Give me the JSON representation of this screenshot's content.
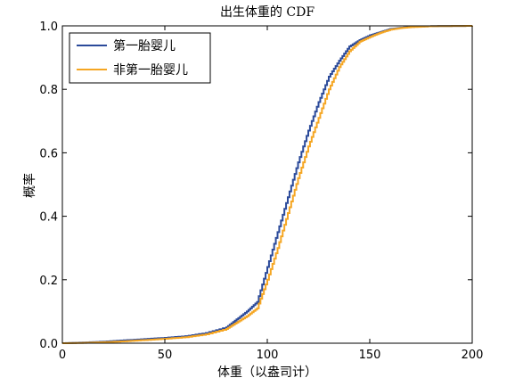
{
  "chart_data": {
    "type": "line",
    "title": "出生体重的 CDF",
    "xlabel": "体重（以盎司计）",
    "ylabel": "概率",
    "xlim": [
      0,
      200
    ],
    "ylim": [
      0.0,
      1.0
    ],
    "xticks": [
      "0",
      "50",
      "100",
      "150",
      "200"
    ],
    "yticks": [
      "0.0",
      "0.2",
      "0.4",
      "0.6",
      "0.8",
      "1.0"
    ],
    "grid": false,
    "legend_position": "top-left",
    "series": [
      {
        "name": "第一胎婴儿",
        "color": "#2b4a9a",
        "x": [
          0,
          10,
          20,
          30,
          40,
          50,
          60,
          70,
          80,
          85,
          90,
          95,
          100,
          105,
          110,
          115,
          120,
          125,
          130,
          135,
          140,
          145,
          150,
          155,
          160,
          165,
          170,
          180,
          200
        ],
        "y": [
          0.0,
          0.002,
          0.005,
          0.009,
          0.013,
          0.017,
          0.022,
          0.032,
          0.05,
          0.075,
          0.1,
          0.13,
          0.24,
          0.35,
          0.46,
          0.57,
          0.67,
          0.76,
          0.84,
          0.89,
          0.935,
          0.955,
          0.97,
          0.98,
          0.99,
          0.994,
          0.997,
          0.999,
          1.0
        ]
      },
      {
        "name": "非第一胎婴儿",
        "color": "#f5a623",
        "x": [
          0,
          10,
          20,
          30,
          40,
          50,
          60,
          70,
          80,
          85,
          90,
          95,
          100,
          105,
          110,
          115,
          120,
          125,
          130,
          135,
          140,
          145,
          150,
          155,
          160,
          165,
          170,
          180,
          200
        ],
        "y": [
          0.0,
          0.001,
          0.003,
          0.006,
          0.01,
          0.014,
          0.019,
          0.028,
          0.045,
          0.065,
          0.085,
          0.11,
          0.2,
          0.3,
          0.41,
          0.52,
          0.62,
          0.71,
          0.8,
          0.87,
          0.92,
          0.95,
          0.965,
          0.978,
          0.988,
          0.993,
          0.996,
          0.999,
          1.0
        ]
      }
    ]
  }
}
